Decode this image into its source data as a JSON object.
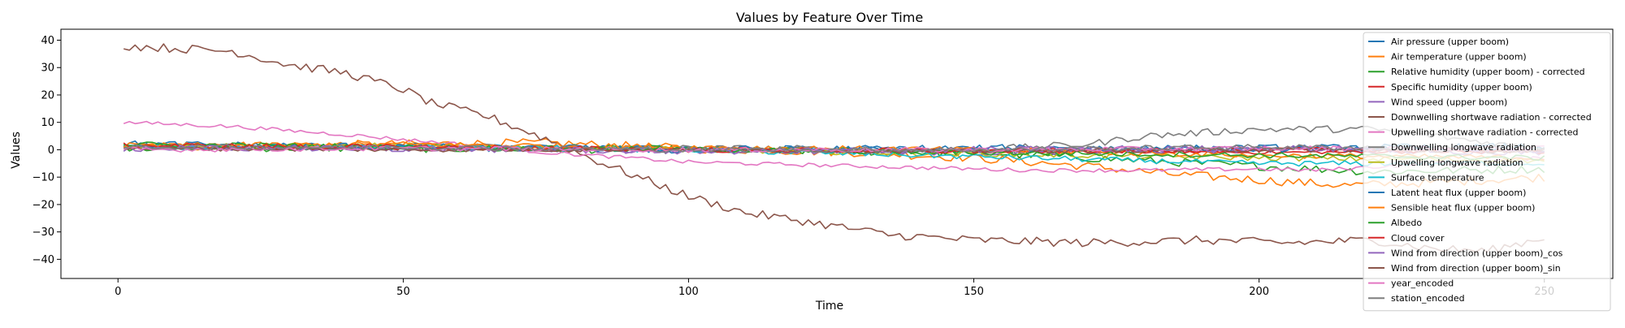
{
  "chart_data": {
    "type": "line",
    "title": "Values by Feature Over Time",
    "xlabel": "Time",
    "ylabel": "Values",
    "xlim": [
      -10,
      262
    ],
    "ylim": [
      -47,
      44
    ],
    "x_ticks": [
      0,
      50,
      100,
      150,
      200,
      250
    ],
    "y_ticks": [
      -40,
      -30,
      -20,
      -10,
      0,
      10,
      20,
      30,
      40
    ],
    "grid": false,
    "legend_position": "upper-right",
    "x": {
      "start": 1,
      "end": 250,
      "step": 1
    },
    "series": [
      {
        "name": "Air pressure (upper boom)",
        "color": "#1f77b4",
        "keyframes": [
          [
            1,
            1.5
          ],
          [
            50,
            1.0
          ],
          [
            100,
            0.5
          ],
          [
            150,
            0.0
          ],
          [
            180,
            0.5
          ],
          [
            200,
            0.5
          ],
          [
            220,
            0.5
          ],
          [
            250,
            0.0
          ]
        ],
        "noise": 1.0
      },
      {
        "name": "Air temperature (upper boom)",
        "color": "#ff7f0e",
        "keyframes": [
          [
            1,
            1.0
          ],
          [
            50,
            2.0
          ],
          [
            75,
            2.5
          ],
          [
            100,
            0.5
          ],
          [
            130,
            -1.0
          ],
          [
            150,
            -3.0
          ],
          [
            170,
            -6.0
          ],
          [
            185,
            -9.0
          ],
          [
            200,
            -11.0
          ],
          [
            215,
            -13.0
          ],
          [
            230,
            -12.0
          ],
          [
            250,
            -10.0
          ]
        ],
        "noise": 1.6
      },
      {
        "name": "Relative humidity (upper boom) - corrected",
        "color": "#2ca02c",
        "keyframes": [
          [
            1,
            1.0
          ],
          [
            50,
            0.5
          ],
          [
            100,
            0.0
          ],
          [
            150,
            -1.0
          ],
          [
            170,
            -3.0
          ],
          [
            190,
            -5.0
          ],
          [
            200,
            -6.0
          ],
          [
            220,
            -8.0
          ],
          [
            250,
            -7.0
          ]
        ],
        "noise": 1.5
      },
      {
        "name": "Specific humidity (upper boom)",
        "color": "#d62728",
        "keyframes": [
          [
            1,
            1.0
          ],
          [
            50,
            0.5
          ],
          [
            100,
            0.0
          ],
          [
            150,
            -0.5
          ],
          [
            200,
            -1.0
          ],
          [
            250,
            -0.5
          ]
        ],
        "noise": 0.6
      },
      {
        "name": "Wind speed (upper boom)",
        "color": "#9467bd",
        "keyframes": [
          [
            1,
            1.0
          ],
          [
            50,
            0.5
          ],
          [
            100,
            -0.5
          ],
          [
            150,
            -1.0
          ],
          [
            200,
            0.0
          ],
          [
            250,
            -1.0
          ]
        ],
        "noise": 1.0
      },
      {
        "name": "Downwelling shortwave radiation - corrected",
        "color": "#8c564b",
        "keyframes": [
          [
            1,
            38.0
          ],
          [
            10,
            37.0
          ],
          [
            20,
            36.0
          ],
          [
            30,
            31.0
          ],
          [
            40,
            28.0
          ],
          [
            50,
            22.0
          ],
          [
            55,
            17.0
          ],
          [
            65,
            12.0
          ],
          [
            75,
            4.0
          ],
          [
            85,
            -5.0
          ],
          [
            95,
            -13.0
          ],
          [
            100,
            -17.0
          ],
          [
            110,
            -23.0
          ],
          [
            120,
            -26.0
          ],
          [
            135,
            -31.0
          ],
          [
            150,
            -33.0
          ],
          [
            170,
            -34.0
          ],
          [
            190,
            -33.0
          ],
          [
            205,
            -34.0
          ],
          [
            220,
            -33.0
          ],
          [
            230,
            -36.0
          ],
          [
            240,
            -37.0
          ],
          [
            250,
            -32.0
          ]
        ],
        "noise": 1.6
      },
      {
        "name": "Upwelling shortwave radiation - corrected",
        "color": "#e377c2",
        "keyframes": [
          [
            1,
            10.0
          ],
          [
            20,
            8.5
          ],
          [
            40,
            5.5
          ],
          [
            60,
            2.0
          ],
          [
            75,
            -1.0
          ],
          [
            90,
            -3.0
          ],
          [
            100,
            -4.5
          ],
          [
            120,
            -5.5
          ],
          [
            140,
            -6.5
          ],
          [
            160,
            -7.5
          ],
          [
            180,
            -7.5
          ],
          [
            200,
            -7.0
          ],
          [
            210,
            -7.5
          ],
          [
            230,
            -5.0
          ],
          [
            250,
            -3.0
          ]
        ],
        "noise": 0.7
      },
      {
        "name": "Downwelling longwave radiation",
        "color": "#7f7f7f",
        "keyframes": [
          [
            1,
            1.5
          ],
          [
            50,
            1.0
          ],
          [
            100,
            0.5
          ],
          [
            150,
            0.0
          ],
          [
            170,
            2.0
          ],
          [
            180,
            5.0
          ],
          [
            200,
            7.5
          ],
          [
            220,
            7.5
          ],
          [
            235,
            4.0
          ],
          [
            250,
            0.0
          ]
        ],
        "noise": 1.3
      },
      {
        "name": "Upwelling longwave radiation",
        "color": "#bcbd22",
        "keyframes": [
          [
            1,
            1.5
          ],
          [
            50,
            1.5
          ],
          [
            80,
            1.0
          ],
          [
            100,
            0.0
          ],
          [
            150,
            -1.5
          ],
          [
            200,
            -3.0
          ],
          [
            250,
            -4.0
          ]
        ],
        "noise": 1.0
      },
      {
        "name": "Surface temperature",
        "color": "#17becf",
        "keyframes": [
          [
            1,
            1.0
          ],
          [
            50,
            1.0
          ],
          [
            100,
            0.0
          ],
          [
            150,
            -2.5
          ],
          [
            200,
            -5.0
          ],
          [
            250,
            -5.0
          ]
        ],
        "noise": 1.0
      },
      {
        "name": "Latent heat flux (upper boom)",
        "color": "#1f77b4",
        "keyframes": [
          [
            1,
            2.0
          ],
          [
            50,
            1.0
          ],
          [
            100,
            0.0
          ],
          [
            150,
            0.5
          ],
          [
            200,
            0.5
          ],
          [
            250,
            1.0
          ]
        ],
        "noise": 1.4
      },
      {
        "name": "Sensible heat flux (upper boom)",
        "color": "#ff7f0e",
        "keyframes": [
          [
            1,
            1.5
          ],
          [
            50,
            2.0
          ],
          [
            100,
            1.0
          ],
          [
            150,
            0.0
          ],
          [
            200,
            -2.0
          ],
          [
            250,
            -3.0
          ]
        ],
        "noise": 1.0
      },
      {
        "name": "Albedo",
        "color": "#2ca02c",
        "keyframes": [
          [
            1,
            2.0
          ],
          [
            50,
            1.0
          ],
          [
            100,
            0.0
          ],
          [
            150,
            -1.0
          ],
          [
            200,
            -2.0
          ],
          [
            250,
            -3.0
          ]
        ],
        "noise": 1.0
      },
      {
        "name": "Cloud cover",
        "color": "#d62728",
        "keyframes": [
          [
            1,
            1.5
          ],
          [
            50,
            1.0
          ],
          [
            100,
            0.0
          ],
          [
            150,
            -0.5
          ],
          [
            200,
            0.0
          ],
          [
            250,
            -0.5
          ]
        ],
        "noise": 1.0
      },
      {
        "name": "Wind from direction (upper boom)_cos",
        "color": "#9467bd",
        "keyframes": [
          [
            1,
            0.5
          ],
          [
            50,
            0.5
          ],
          [
            100,
            -0.5
          ],
          [
            150,
            0.0
          ],
          [
            200,
            0.5
          ],
          [
            250,
            0.0
          ]
        ],
        "noise": 1.2
      },
      {
        "name": "Wind from direction (upper boom)_sin",
        "color": "#8c564b",
        "keyframes": [
          [
            1,
            0.5
          ],
          [
            50,
            0.0
          ],
          [
            100,
            0.0
          ],
          [
            150,
            -0.5
          ],
          [
            200,
            0.0
          ],
          [
            250,
            -0.5
          ]
        ],
        "noise": 0.8
      },
      {
        "name": "year_encoded",
        "color": "#e377c2",
        "keyframes": [
          [
            1,
            0.0
          ],
          [
            50,
            0.5
          ],
          [
            100,
            0.0
          ],
          [
            150,
            0.0
          ],
          [
            200,
            0.5
          ],
          [
            250,
            0.5
          ]
        ],
        "noise": 0.9
      },
      {
        "name": "station_encoded",
        "color": "#7f7f7f",
        "keyframes": [
          [
            1,
            1.0
          ],
          [
            50,
            1.0
          ],
          [
            100,
            0.0
          ],
          [
            150,
            0.0
          ],
          [
            200,
            1.0
          ],
          [
            250,
            0.5
          ]
        ],
        "noise": 1.0
      }
    ]
  }
}
